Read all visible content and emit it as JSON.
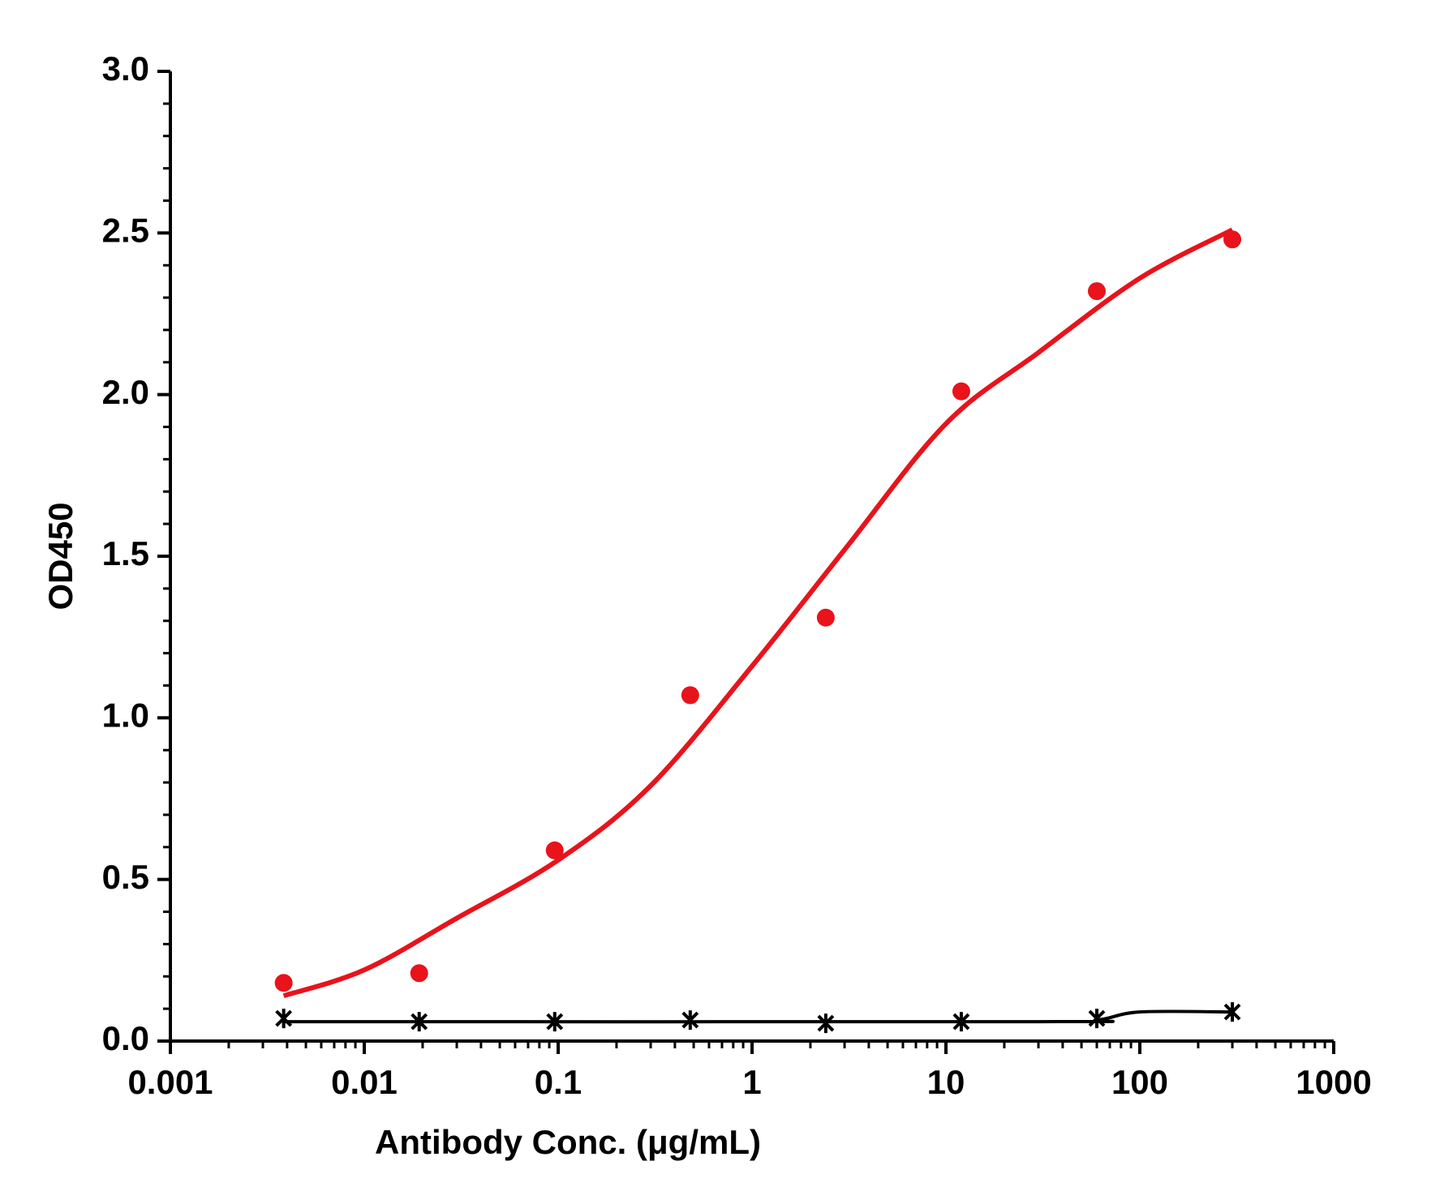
{
  "chart_data": {
    "type": "scatter",
    "xlabel": "Antibody Conc. (μg/mL)",
    "ylabel": "OD450",
    "xscale": "log",
    "xlim": [
      0.001,
      1000
    ],
    "xticks": [
      0.001,
      0.01,
      0.1,
      1,
      10,
      100,
      1000
    ],
    "ylim": [
      0,
      3
    ],
    "yticks": [
      {
        "value": 0,
        "label": "0.0"
      },
      {
        "value": 0.5,
        "label": "0.5"
      },
      {
        "value": 1,
        "label": "1.0"
      },
      {
        "value": 1.5,
        "label": "1.5"
      },
      {
        "value": 2,
        "label": "2.0"
      },
      {
        "value": 2.5,
        "label": "2.5"
      },
      {
        "value": 3,
        "label": "3.0"
      }
    ],
    "x": [
      0.00384,
      0.0192,
      0.096,
      0.48,
      2.4,
      12,
      60,
      300
    ],
    "series": [
      {
        "color": "#e8131b",
        "marker": "circle",
        "values": [
          0.18,
          0.21,
          0.59,
          1.07,
          1.31,
          2.01,
          2.32,
          2.48
        ],
        "fit": {
          "x": [
            0.00384,
            0.01,
            0.03,
            0.1,
            0.3,
            1,
            3,
            10,
            30,
            100,
            300
          ],
          "values": [
            0.14,
            0.22,
            0.38,
            0.56,
            0.79,
            1.16,
            1.52,
            1.91,
            2.13,
            2.36,
            2.51
          ]
        }
      },
      {
        "color": "#000000",
        "marker": "asterisk",
        "values": [
          0.07,
          0.06,
          0.06,
          0.065,
          0.055,
          0.06,
          0.07,
          0.09
        ],
        "fit": {
          "x": [
            0.00384,
            30,
            60,
            100,
            300
          ],
          "values": [
            0.06,
            0.06,
            0.065,
            0.09,
            0.09
          ]
        }
      }
    ]
  }
}
